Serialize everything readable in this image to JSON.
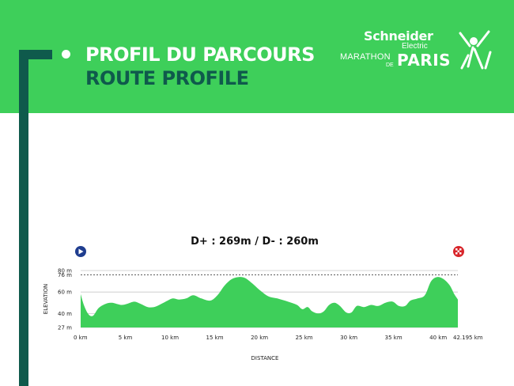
{
  "header": {
    "title_fr": "PROFIL DU PARCOURS",
    "title_en": "ROUTE PROFILE",
    "background": "#3ecf5a",
    "accent_dark": "#0f5a4c"
  },
  "logo": {
    "brand": "Schneider",
    "brand_sub": "Electric",
    "event": "MARATHON",
    "de": "DE",
    "city": "PARIS",
    "figure_icon": "runner-icon"
  },
  "chart_data": {
    "type": "area",
    "title": "D+ : 269m / D- : 260m",
    "xlabel": "DISTANCE",
    "ylabel": "ELEVATION",
    "xlim": [
      0,
      42.195
    ],
    "ylim": [
      27,
      80
    ],
    "x_tick_labels": [
      "0 km",
      "5 km",
      "10 km",
      "15 km",
      "20 km",
      "25 km",
      "30 km",
      "35 km",
      "40 km",
      "42.195 km"
    ],
    "x_ticks": [
      0,
      5,
      10,
      15,
      20,
      25,
      30,
      35,
      40,
      42.195
    ],
    "y_tick_labels": [
      "80 m",
      "76 m",
      "60 m",
      "40 m",
      "27 m"
    ],
    "y_ticks": [
      80,
      76,
      60,
      40,
      27
    ],
    "reference_line": 76,
    "start_icon": "start-play-icon",
    "finish_icon": "finish-flag-icon",
    "fill_color": "#3ecf5a",
    "grid_color": "#c8c8c8",
    "points": [
      [
        0,
        58
      ],
      [
        0.4,
        47
      ],
      [
        0.9,
        39
      ],
      [
        1.4,
        38
      ],
      [
        2,
        45
      ],
      [
        2.8,
        49
      ],
      [
        3.5,
        50
      ],
      [
        4.5,
        48
      ],
      [
        5.2,
        49
      ],
      [
        6,
        51
      ],
      [
        6.7,
        49
      ],
      [
        7.5,
        46
      ],
      [
        8.2,
        46
      ],
      [
        8.8,
        48
      ],
      [
        9.5,
        51
      ],
      [
        10.3,
        54
      ],
      [
        11,
        53
      ],
      [
        11.8,
        54
      ],
      [
        12.6,
        57
      ],
      [
        13.5,
        54
      ],
      [
        14.5,
        52
      ],
      [
        15.3,
        57
      ],
      [
        16.1,
        66
      ],
      [
        16.9,
        72
      ],
      [
        17.7,
        74
      ],
      [
        18.4,
        73
      ],
      [
        19.2,
        68
      ],
      [
        20,
        62
      ],
      [
        21,
        56
      ],
      [
        22,
        54
      ],
      [
        23.2,
        51
      ],
      [
        24.2,
        48
      ],
      [
        24.8,
        44
      ],
      [
        25.4,
        46
      ],
      [
        25.9,
        42
      ],
      [
        26.6,
        40
      ],
      [
        27.2,
        42
      ],
      [
        27.8,
        48
      ],
      [
        28.4,
        50
      ],
      [
        29,
        47
      ],
      [
        29.7,
        41
      ],
      [
        30.3,
        41
      ],
      [
        30.9,
        47
      ],
      [
        31.7,
        46
      ],
      [
        32.5,
        48
      ],
      [
        33.3,
        47
      ],
      [
        34.1,
        50
      ],
      [
        34.9,
        51
      ],
      [
        35.6,
        47
      ],
      [
        36.3,
        47
      ],
      [
        36.9,
        52
      ],
      [
        37.7,
        54
      ],
      [
        38.5,
        57
      ],
      [
        39.2,
        70
      ],
      [
        39.9,
        74
      ],
      [
        40.6,
        72
      ],
      [
        41.3,
        66
      ],
      [
        41.8,
        58
      ],
      [
        42.195,
        53
      ]
    ]
  }
}
